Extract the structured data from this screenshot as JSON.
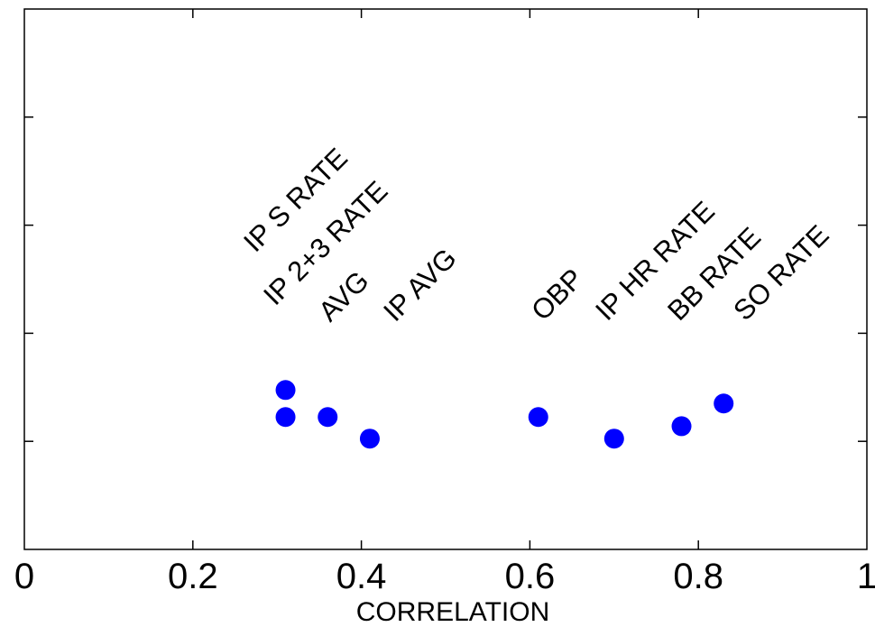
{
  "chart_data": {
    "type": "scatter",
    "title": "",
    "xlabel": "CORRELATION",
    "ylabel": "",
    "xlim": [
      0,
      1
    ],
    "ylim": [
      0,
      1
    ],
    "grid": false,
    "x_ticks": [
      0,
      0.2,
      0.4,
      0.6,
      0.8,
      1
    ],
    "x_tick_labels": [
      "0",
      "0.2",
      "0.4",
      "0.6",
      "0.8",
      "1"
    ],
    "y_ticks": [
      0.2,
      0.4,
      0.6,
      0.8
    ],
    "marker_color": "#0000ff",
    "points": [
      {
        "label": "IP S RATE",
        "x": 0.31,
        "y": 0.295
      },
      {
        "label": "IP 2+3 RATE",
        "x": 0.31,
        "y": 0.245
      },
      {
        "label": "AVG",
        "x": 0.36,
        "y": 0.245
      },
      {
        "label": "IP AVG",
        "x": 0.41,
        "y": 0.205
      },
      {
        "label": "OBP",
        "x": 0.61,
        "y": 0.245
      },
      {
        "label": "IP HR RATE",
        "x": 0.7,
        "y": 0.205
      },
      {
        "label": "BB RATE",
        "x": 0.78,
        "y": 0.228
      },
      {
        "label": "SO RATE",
        "x": 0.83,
        "y": 0.27
      }
    ]
  }
}
